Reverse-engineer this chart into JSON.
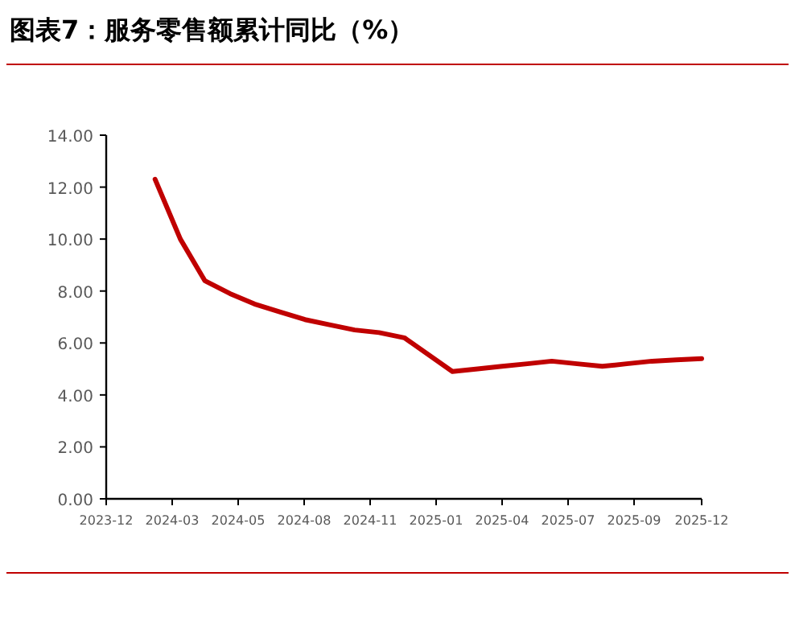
{
  "chart_data": {
    "type": "line",
    "title": "图表7：服务零售额累计同比（%）",
    "x": [
      "2024-02-29",
      "2024-03-31",
      "2024-04-30",
      "2024-05-31",
      "2024-06-30",
      "2024-07-31",
      "2024-08-31",
      "2024-09-30",
      "2024-10-31",
      "2024-11-30",
      "2024-12-31",
      "2025-02-28",
      "2025-03-31",
      "2025-04-30",
      "2025-05-31",
      "2025-06-30",
      "2025-07-31",
      "2025-08-31",
      "2025-09-30",
      "2025-10-31",
      "2025-11-30",
      "2025-12-31"
    ],
    "series": [
      {
        "color": "#c00000",
        "values": [
          12.3,
          10.0,
          8.4,
          7.9,
          7.5,
          7.2,
          6.9,
          6.7,
          6.5,
          6.4,
          6.2,
          4.9,
          5.0,
          5.1,
          5.2,
          5.3,
          5.2,
          5.1,
          5.2,
          5.3,
          5.35,
          5.4
        ]
      }
    ],
    "xlim": [
      "2023-12-31",
      "2025-12-31"
    ],
    "xticks": [
      {
        "value": "2023-12-31",
        "label": "2023-12"
      },
      {
        "value": "2024-03-21",
        "label": "2024-03"
      },
      {
        "value": "2024-06-10",
        "label": "2024-05"
      },
      {
        "value": "2024-08-30",
        "label": "2024-08"
      },
      {
        "value": "2024-11-19",
        "label": "2024-11"
      },
      {
        "value": "2025-02-08",
        "label": "2025-01"
      },
      {
        "value": "2025-04-30",
        "label": "2025-04"
      },
      {
        "value": "2025-07-20",
        "label": "2025-07"
      },
      {
        "value": "2025-10-09",
        "label": "2025-09"
      },
      {
        "value": "2025-12-31",
        "label": "2025-12"
      }
    ],
    "ylim": [
      0,
      14
    ],
    "yticks": [
      {
        "value": 0,
        "label": "0.00"
      },
      {
        "value": 2,
        "label": "2.00"
      },
      {
        "value": 4,
        "label": "4.00"
      },
      {
        "value": 6,
        "label": "6.00"
      },
      {
        "value": 8,
        "label": "8.00"
      },
      {
        "value": 10,
        "label": "10.00"
      },
      {
        "value": 12,
        "label": "12.00"
      },
      {
        "value": 14,
        "label": "14.00"
      }
    ],
    "grid": false,
    "marker": "none",
    "line_style": "solid"
  }
}
